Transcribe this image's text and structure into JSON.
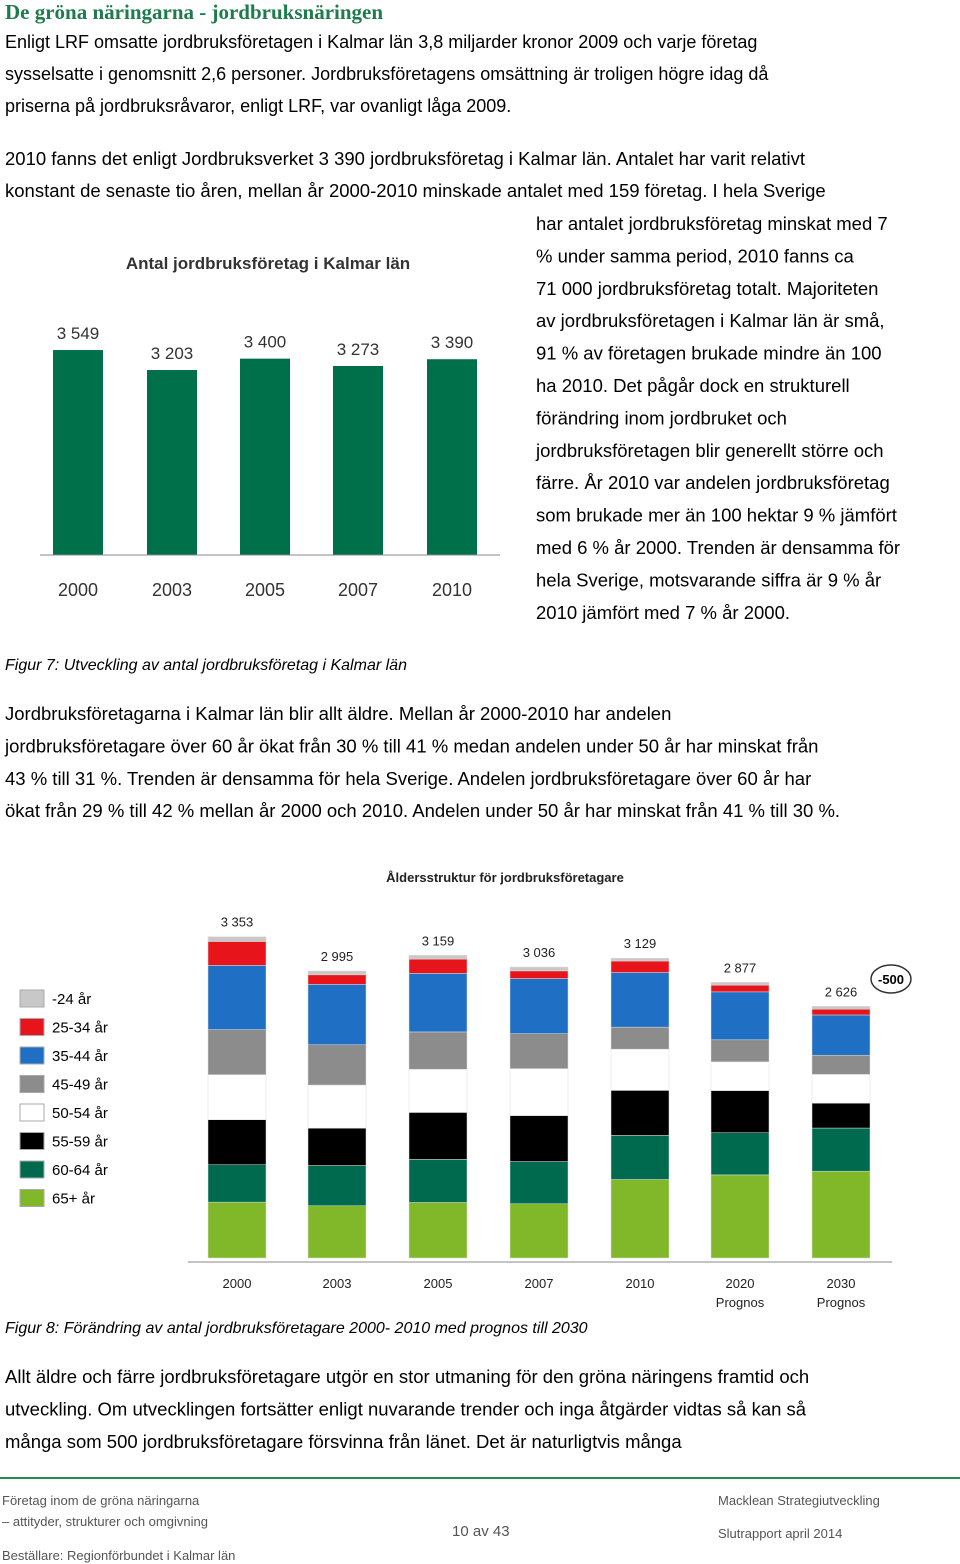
{
  "heading": "De gröna näringarna - jordbruksnäringen",
  "intro_lines": [
    "Enligt LRF omsatte jordbruksföretagen i Kalmar län 3,8 miljarder kronor 2009 och varje företag",
    "sysselsatte i genomsnitt 2,6 personer. Jordbruksföretagens omsättning är troligen högre idag då",
    "priserna på jordbruksråvaror, enligt LRF, var ovanligt låga 2009."
  ],
  "paragraph2_lines": [
    "2010 fanns det enligt Jordbruksverket 3 390 jordbruksföretag i Kalmar län. Antalet har varit relativt",
    "konstant de senaste tio åren, mellan år 2000-2010 minskade antalet med 159 företag. I hela Sverige"
  ],
  "column_lines": [
    "har antalet jordbruksföretag minskat med 7",
    "% under samma period, 2010 fanns ca",
    "71 000 jordbruksföretag totalt. Majoriteten",
    "av jordbruksföretagen i Kalmar län är små,",
    "91 % av företagen brukade mindre än 100",
    "ha 2010. Det pågår dock en strukturell",
    "förändring inom jordbruket och",
    "jordbruksföretagen blir generellt större och",
    "färre. År 2010 var andelen jordbruksföretag",
    "som brukade mer än 100 hektar 9 % jämfört",
    "med 6 % år 2000. Trenden är densamma för",
    "hela Sverige, motsvarande siffra är 9 % år",
    "2010 jämfört med 7 % år 2000."
  ],
  "caption1": "Figur 7: Utveckling av antal jordbruksföretag i Kalmar län",
  "paragraph3_lines": [
    "Jordbruksföretagarna i Kalmar län blir allt äldre. Mellan år 2000-2010 har andelen",
    "jordbruksföretagare över 60 år ökat från 30 % till 41 % medan andelen under 50 år har minskat från",
    "43 % till 31 %. Trenden är densamma för hela Sverige. Andelen jordbruksföretagare över 60 år har",
    "ökat från 29 % till 42 % mellan år 2000 och 2010. Andelen under 50 år har minskat från 41 % till 30 %."
  ],
  "caption2": "Figur 8: Förändring av antal jordbruksföretagare 2000- 2010 med prognos till 2030",
  "paragraph4_lines": [
    "Allt äldre och färre jordbruksföretagare utgör en stor utmaning för den gröna näringens framtid och",
    "utveckling. Om utvecklingen fortsätter enligt nuvarande trender och inga åtgärder vidtas så kan så",
    "många som 500 jordbruksföretagare försvinna från länet. Det är naturligtvis många"
  ],
  "footer": {
    "left": [
      "Företag inom de gröna näringarna",
      "– attityder, strukturer och omgivning",
      "Beställare: Regionförbundet i Kalmar län"
    ],
    "page": "10 av 43",
    "right": [
      "Macklean Strategiutveckling",
      "Slutrapport april 2014"
    ]
  },
  "chart_data": [
    {
      "type": "bar",
      "title": "Antal jordbruksföretag i Kalmar län",
      "categories": [
        "2000",
        "2003",
        "2005",
        "2007",
        "2010"
      ],
      "values": [
        3549,
        3203,
        3400,
        3273,
        3390
      ],
      "value_labels": [
        "3 549",
        "3 203",
        "3 400",
        "3 273",
        "3 390"
      ],
      "color": "#00704a",
      "ylim": [
        0,
        4000
      ]
    },
    {
      "type": "stacked_bar",
      "title": "Åldersstruktur för jordbruksföretagare",
      "categories": [
        "2000",
        "2003",
        "2005",
        "2007",
        "2010",
        "2020",
        "2030"
      ],
      "category_sublabels": [
        null,
        null,
        null,
        null,
        null,
        "Prognos",
        "Prognos"
      ],
      "series": [
        {
          "name": "-24 år",
          "color": "#c8c8c8",
          "values": [
            50,
            40,
            40,
            40,
            30,
            30,
            30
          ]
        },
        {
          "name": "25-34 år",
          "color": "#e8141b",
          "values": [
            250,
            100,
            150,
            80,
            120,
            70,
            60
          ]
        },
        {
          "name": "35-44 år",
          "color": "#1f6fc5",
          "values": [
            670,
            630,
            610,
            575,
            570,
            500,
            420
          ]
        },
        {
          "name": "45-49 år",
          "color": "#8c8c8c",
          "values": [
            470,
            420,
            390,
            365,
            230,
            230,
            200
          ]
        },
        {
          "name": "50-54 år",
          "color": "#ffffff",
          "values": [
            470,
            450,
            450,
            490,
            430,
            300,
            300
          ]
        },
        {
          "name": "55-59 år",
          "color": "#000000",
          "values": [
            470,
            390,
            490,
            480,
            470,
            440,
            260
          ]
        },
        {
          "name": "60-64 år",
          "color": "#006a4e",
          "values": [
            390,
            420,
            450,
            440,
            460,
            440,
            450
          ]
        },
        {
          "name": "65+ år",
          "color": "#80b82a",
          "values": [
            583,
            545,
            579,
            566,
            819,
            867,
            906
          ]
        }
      ],
      "totals": [
        3353,
        2995,
        3159,
        3036,
        3129,
        2877,
        2626
      ],
      "total_labels": [
        "3 353",
        "2 995",
        "3 159",
        "3 036",
        "3 129",
        "2 877",
        "2 626"
      ],
      "annotation": "-500",
      "ylim": [
        0,
        3600
      ]
    }
  ]
}
